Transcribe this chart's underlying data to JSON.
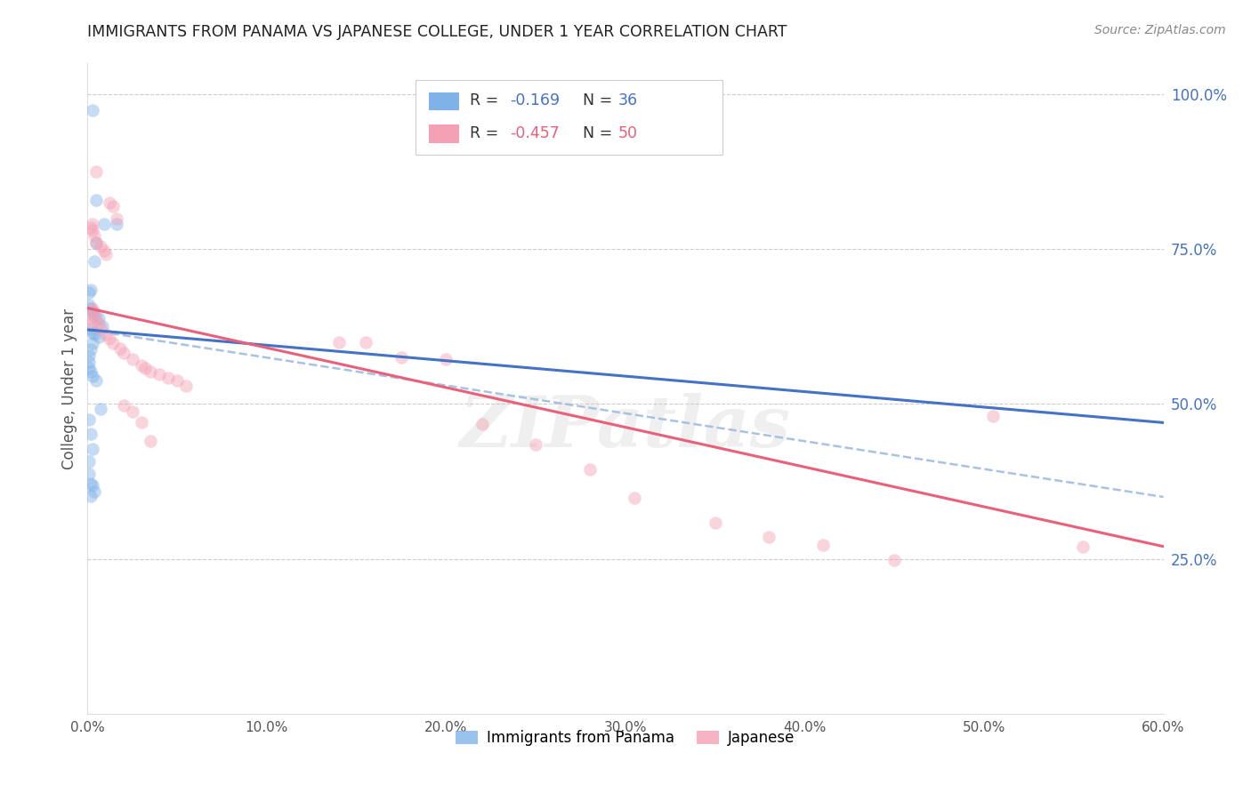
{
  "title": "IMMIGRANTS FROM PANAMA VS JAPANESE COLLEGE, UNDER 1 YEAR CORRELATION CHART",
  "source": "Source: ZipAtlas.com",
  "ylabel": "College, Under 1 year",
  "right_yticks": [
    "100.0%",
    "75.0%",
    "50.0%",
    "25.0%"
  ],
  "right_ytick_vals": [
    1.0,
    0.75,
    0.5,
    0.25
  ],
  "legend_r1": "R = ",
  "legend_v1": "-0.169",
  "legend_n1_label": "N = ",
  "legend_n1_val": "36",
  "legend_r2": "R = ",
  "legend_v2": "-0.457",
  "legend_n2_label": "N = ",
  "legend_n2_val": "50",
  "blue_scatter_color": "#7fb3e8",
  "pink_scatter_color": "#f4a0b5",
  "blue_line_color": "#4472c4",
  "pink_line_color": "#e8607a",
  "dashed_line_color": "#a0bce0",
  "watermark": "ZIPatlas",
  "xlim": [
    0.0,
    0.6
  ],
  "ylim": [
    0.0,
    1.05
  ],
  "x_ticks": [
    0.0,
    0.1,
    0.2,
    0.3,
    0.4,
    0.5,
    0.6
  ],
  "x_tick_labels": [
    "0.0%",
    "10.0%",
    "20.0%",
    "30.0%",
    "40.0%",
    "50.0%",
    "60.0%"
  ],
  "figsize": [
    14.06,
    8.92
  ],
  "dpi": 100,
  "blue_x": [
    0.003,
    0.005,
    0.009,
    0.016,
    0.005,
    0.004,
    0.002,
    0.001,
    0.001,
    0.002,
    0.003,
    0.004,
    0.006,
    0.008,
    0.002,
    0.003,
    0.004,
    0.006,
    0.003,
    0.002,
    0.001,
    0.001,
    0.001,
    0.002,
    0.003,
    0.005,
    0.007,
    0.001,
    0.002,
    0.003,
    0.001,
    0.001,
    0.002,
    0.003,
    0.004,
    0.002
  ],
  "blue_y": [
    0.975,
    0.83,
    0.79,
    0.79,
    0.76,
    0.73,
    0.685,
    0.68,
    0.66,
    0.655,
    0.648,
    0.642,
    0.638,
    0.625,
    0.622,
    0.615,
    0.612,
    0.608,
    0.598,
    0.588,
    0.578,
    0.568,
    0.558,
    0.552,
    0.545,
    0.538,
    0.492,
    0.475,
    0.452,
    0.428,
    0.408,
    0.388,
    0.372,
    0.368,
    0.358,
    0.352
  ],
  "pink_x": [
    0.005,
    0.012,
    0.014,
    0.016,
    0.003,
    0.002,
    0.003,
    0.004,
    0.005,
    0.007,
    0.009,
    0.01,
    0.003,
    0.004,
    0.005,
    0.006,
    0.007,
    0.01,
    0.012,
    0.014,
    0.018,
    0.02,
    0.025,
    0.03,
    0.032,
    0.035,
    0.04,
    0.045,
    0.05,
    0.055,
    0.02,
    0.025,
    0.03,
    0.035,
    0.14,
    0.155,
    0.175,
    0.2,
    0.22,
    0.25,
    0.28,
    0.305,
    0.35,
    0.38,
    0.41,
    0.45,
    0.505,
    0.555,
    0.001,
    0.002
  ],
  "pink_y": [
    0.875,
    0.825,
    0.82,
    0.8,
    0.79,
    0.785,
    0.78,
    0.772,
    0.76,
    0.755,
    0.748,
    0.742,
    0.655,
    0.648,
    0.638,
    0.63,
    0.622,
    0.612,
    0.605,
    0.598,
    0.59,
    0.582,
    0.572,
    0.562,
    0.558,
    0.552,
    0.548,
    0.542,
    0.538,
    0.53,
    0.498,
    0.488,
    0.47,
    0.44,
    0.6,
    0.6,
    0.575,
    0.572,
    0.468,
    0.435,
    0.395,
    0.348,
    0.308,
    0.285,
    0.272,
    0.248,
    0.48,
    0.27,
    0.638,
    0.632
  ],
  "blue_line_x0": 0.0,
  "blue_line_x1": 0.6,
  "blue_line_y0": 0.62,
  "blue_line_y1": 0.47,
  "pink_line_x0": 0.0,
  "pink_line_x1": 0.6,
  "pink_line_y0": 0.655,
  "pink_line_y1": 0.27,
  "dashed_line_y0": 0.62,
  "dashed_line_y1": 0.35
}
